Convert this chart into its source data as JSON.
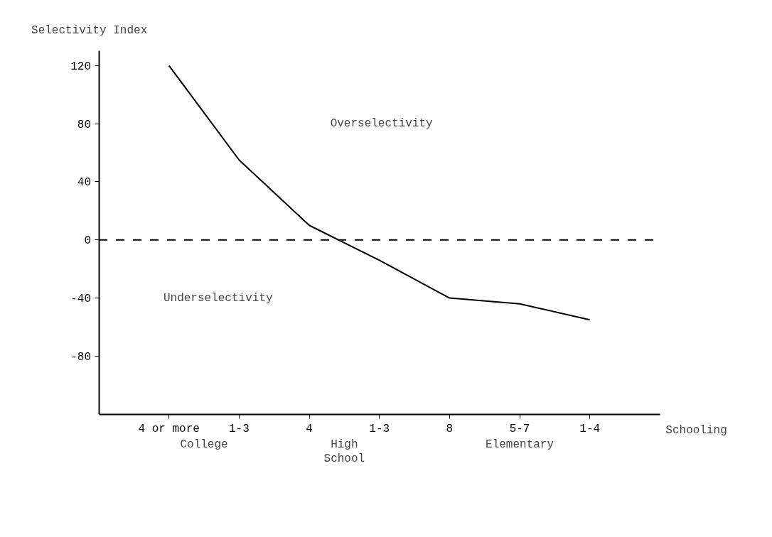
{
  "chart_data": {
    "type": "line",
    "ylabel": "Selectivity Index",
    "xlabel": "Schooling",
    "categories": [
      "4 or more",
      "1-3",
      "4",
      "1-3",
      "8",
      "5-7",
      "1-4"
    ],
    "series": [
      {
        "color": "#000000",
        "values": [
          120,
          55,
          10,
          -14,
          -40,
          -44,
          -55
        ]
      }
    ],
    "ylim": [
      -120,
      130
    ],
    "yticks": [
      120,
      80,
      40,
      0,
      -40,
      -80
    ],
    "ref_lines": [
      {
        "axis": "y",
        "value": 0,
        "line_style": "dashed",
        "color": "#000000"
      }
    ],
    "annotations": [
      "Overselectivity",
      "Underselectivity",
      "College",
      "High School",
      "Elementary"
    ],
    "grid": false,
    "marker": "none",
    "line_style": "solid"
  }
}
